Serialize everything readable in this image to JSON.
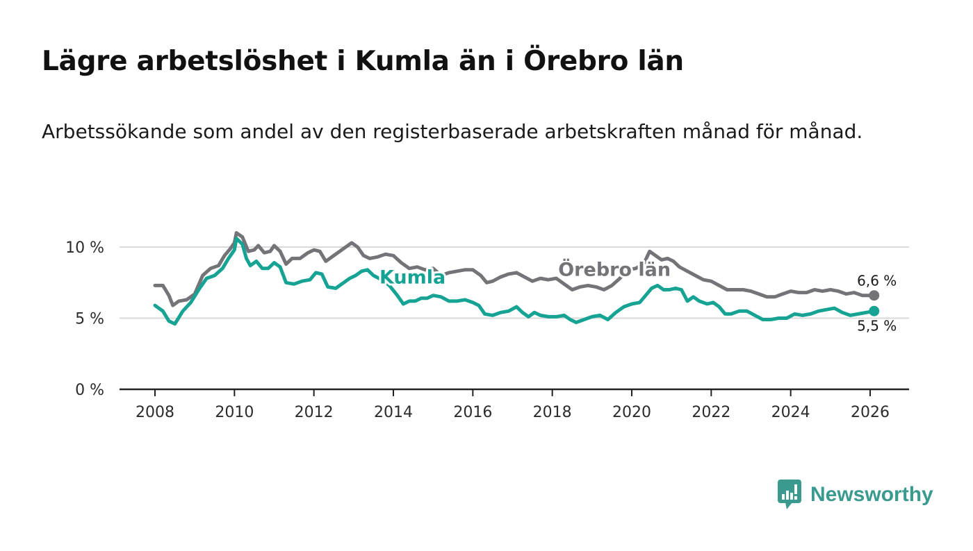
{
  "title": "Lägre arbetslöshet i Kumla än i Örebro län",
  "subtitle": "Arbetssökande som andel av den registerbaserade arbetskraften månad för månad.",
  "brand": {
    "name": "Newsworthy"
  },
  "colors": {
    "kumla": "#16a393",
    "orebro": "#737378",
    "grid": "#d9d9d9",
    "axis": "#222222",
    "brand": "#3a9a8f"
  },
  "chart_data": {
    "type": "line",
    "title": "Lägre arbetslöshet i Kumla än i Örebro län",
    "xlabel": "",
    "ylabel": "",
    "xlim": [
      2007.8,
      2026.9
    ],
    "ylim": [
      0,
      10
    ],
    "x_ticks": [
      2008,
      2010,
      2012,
      2014,
      2016,
      2018,
      2020,
      2022,
      2024,
      2026
    ],
    "x_tick_labels": [
      "2008",
      "2010",
      "2012",
      "2014",
      "2016",
      "2018",
      "2020",
      "2022",
      "2024",
      "2026"
    ],
    "y_ticks": [
      0,
      5,
      10
    ],
    "y_tick_labels": [
      "0 %",
      "5 %",
      "10 %"
    ],
    "grid": true,
    "series": [
      {
        "name": "Örebro län",
        "key": "orebro",
        "label": "Örebro län",
        "label_at": [
          2018.15,
          7.98
        ],
        "end_label": "6,6 %",
        "points": [
          [
            2008.0,
            7.3
          ],
          [
            2008.2,
            7.3
          ],
          [
            2008.35,
            6.6
          ],
          [
            2008.45,
            5.9
          ],
          [
            2008.6,
            6.2
          ],
          [
            2008.8,
            6.3
          ],
          [
            2009.0,
            6.7
          ],
          [
            2009.2,
            8.0
          ],
          [
            2009.4,
            8.5
          ],
          [
            2009.6,
            8.7
          ],
          [
            2009.75,
            9.4
          ],
          [
            2009.9,
            9.9
          ],
          [
            2010.0,
            10.3
          ],
          [
            2010.05,
            11.0
          ],
          [
            2010.2,
            10.7
          ],
          [
            2010.35,
            9.7
          ],
          [
            2010.5,
            9.8
          ],
          [
            2010.6,
            10.1
          ],
          [
            2010.75,
            9.6
          ],
          [
            2010.9,
            9.7
          ],
          [
            2011.0,
            10.1
          ],
          [
            2011.15,
            9.7
          ],
          [
            2011.3,
            8.8
          ],
          [
            2011.45,
            9.2
          ],
          [
            2011.65,
            9.2
          ],
          [
            2011.85,
            9.6
          ],
          [
            2012.0,
            9.8
          ],
          [
            2012.15,
            9.7
          ],
          [
            2012.3,
            9.0
          ],
          [
            2012.45,
            9.3
          ],
          [
            2012.6,
            9.6
          ],
          [
            2012.8,
            10.0
          ],
          [
            2012.95,
            10.3
          ],
          [
            2013.1,
            10.0
          ],
          [
            2013.25,
            9.4
          ],
          [
            2013.4,
            9.2
          ],
          [
            2013.6,
            9.3
          ],
          [
            2013.8,
            9.5
          ],
          [
            2014.0,
            9.4
          ],
          [
            2014.2,
            8.9
          ],
          [
            2014.4,
            8.5
          ],
          [
            2014.6,
            8.6
          ],
          [
            2014.8,
            8.4
          ],
          [
            2015.0,
            8.5
          ],
          [
            2015.2,
            8.0
          ],
          [
            2015.4,
            8.2
          ],
          [
            2015.6,
            8.3
          ],
          [
            2015.8,
            8.4
          ],
          [
            2016.0,
            8.4
          ],
          [
            2016.2,
            8.0
          ],
          [
            2016.35,
            7.5
          ],
          [
            2016.5,
            7.6
          ],
          [
            2016.7,
            7.9
          ],
          [
            2016.9,
            8.1
          ],
          [
            2017.1,
            8.2
          ],
          [
            2017.3,
            7.9
          ],
          [
            2017.5,
            7.6
          ],
          [
            2017.7,
            7.8
          ],
          [
            2017.9,
            7.7
          ],
          [
            2018.1,
            7.8
          ],
          [
            2018.3,
            7.4
          ],
          [
            2018.5,
            7.0
          ],
          [
            2018.7,
            7.2
          ],
          [
            2018.9,
            7.3
          ],
          [
            2019.1,
            7.2
          ],
          [
            2019.3,
            7.0
          ],
          [
            2019.5,
            7.3
          ],
          [
            2019.7,
            7.8
          ],
          [
            2019.9,
            8.4
          ],
          [
            2020.1,
            8.5
          ],
          [
            2020.3,
            8.8
          ],
          [
            2020.45,
            9.7
          ],
          [
            2020.6,
            9.4
          ],
          [
            2020.75,
            9.1
          ],
          [
            2020.9,
            9.2
          ],
          [
            2021.05,
            9.0
          ],
          [
            2021.2,
            8.6
          ],
          [
            2021.4,
            8.3
          ],
          [
            2021.6,
            8.0
          ],
          [
            2021.8,
            7.7
          ],
          [
            2022.0,
            7.6
          ],
          [
            2022.2,
            7.3
          ],
          [
            2022.4,
            7.0
          ],
          [
            2022.6,
            7.0
          ],
          [
            2022.8,
            7.0
          ],
          [
            2023.0,
            6.9
          ],
          [
            2023.2,
            6.7
          ],
          [
            2023.4,
            6.5
          ],
          [
            2023.6,
            6.5
          ],
          [
            2023.8,
            6.7
          ],
          [
            2024.0,
            6.9
          ],
          [
            2024.2,
            6.8
          ],
          [
            2024.4,
            6.8
          ],
          [
            2024.6,
            7.0
          ],
          [
            2024.8,
            6.9
          ],
          [
            2025.0,
            7.0
          ],
          [
            2025.2,
            6.9
          ],
          [
            2025.4,
            6.7
          ],
          [
            2025.6,
            6.8
          ],
          [
            2025.8,
            6.6
          ],
          [
            2026.0,
            6.6
          ],
          [
            2026.1,
            6.6
          ]
        ]
      },
      {
        "name": "Kumla",
        "key": "kumla",
        "label": "Kumla",
        "label_at": [
          2013.65,
          7.43
        ],
        "end_label": "5,5 %",
        "points": [
          [
            2008.0,
            5.9
          ],
          [
            2008.2,
            5.5
          ],
          [
            2008.35,
            4.8
          ],
          [
            2008.5,
            4.6
          ],
          [
            2008.7,
            5.5
          ],
          [
            2008.9,
            6.1
          ],
          [
            2009.1,
            7.0
          ],
          [
            2009.3,
            7.8
          ],
          [
            2009.5,
            8.0
          ],
          [
            2009.7,
            8.5
          ],
          [
            2009.85,
            9.2
          ],
          [
            2010.0,
            9.8
          ],
          [
            2010.05,
            10.6
          ],
          [
            2010.2,
            10.2
          ],
          [
            2010.3,
            9.2
          ],
          [
            2010.4,
            8.7
          ],
          [
            2010.55,
            9.0
          ],
          [
            2010.7,
            8.5
          ],
          [
            2010.85,
            8.5
          ],
          [
            2011.0,
            8.9
          ],
          [
            2011.15,
            8.6
          ],
          [
            2011.3,
            7.5
          ],
          [
            2011.5,
            7.4
          ],
          [
            2011.7,
            7.6
          ],
          [
            2011.9,
            7.7
          ],
          [
            2012.05,
            8.2
          ],
          [
            2012.2,
            8.1
          ],
          [
            2012.35,
            7.2
          ],
          [
            2012.55,
            7.1
          ],
          [
            2012.7,
            7.4
          ],
          [
            2012.9,
            7.8
          ],
          [
            2013.05,
            8.0
          ],
          [
            2013.2,
            8.3
          ],
          [
            2013.35,
            8.4
          ],
          [
            2013.5,
            8.0
          ],
          [
            2013.7,
            7.7
          ],
          [
            2013.9,
            7.3
          ],
          [
            2014.1,
            6.6
          ],
          [
            2014.25,
            6.0
          ],
          [
            2014.4,
            6.2
          ],
          [
            2014.55,
            6.2
          ],
          [
            2014.7,
            6.4
          ],
          [
            2014.85,
            6.4
          ],
          [
            2015.0,
            6.6
          ],
          [
            2015.2,
            6.5
          ],
          [
            2015.4,
            6.2
          ],
          [
            2015.6,
            6.2
          ],
          [
            2015.8,
            6.3
          ],
          [
            2016.0,
            6.1
          ],
          [
            2016.15,
            5.9
          ],
          [
            2016.3,
            5.3
          ],
          [
            2016.5,
            5.2
          ],
          [
            2016.7,
            5.4
          ],
          [
            2016.9,
            5.5
          ],
          [
            2017.1,
            5.8
          ],
          [
            2017.25,
            5.4
          ],
          [
            2017.4,
            5.1
          ],
          [
            2017.55,
            5.4
          ],
          [
            2017.7,
            5.2
          ],
          [
            2017.9,
            5.1
          ],
          [
            2018.1,
            5.1
          ],
          [
            2018.3,
            5.2
          ],
          [
            2018.45,
            4.9
          ],
          [
            2018.6,
            4.7
          ],
          [
            2018.8,
            4.9
          ],
          [
            2019.0,
            5.1
          ],
          [
            2019.2,
            5.2
          ],
          [
            2019.4,
            4.9
          ],
          [
            2019.6,
            5.4
          ],
          [
            2019.8,
            5.8
          ],
          [
            2020.0,
            6.0
          ],
          [
            2020.2,
            6.1
          ],
          [
            2020.35,
            6.6
          ],
          [
            2020.5,
            7.1
          ],
          [
            2020.65,
            7.3
          ],
          [
            2020.8,
            7.0
          ],
          [
            2020.95,
            7.0
          ],
          [
            2021.1,
            7.1
          ],
          [
            2021.25,
            7.0
          ],
          [
            2021.4,
            6.2
          ],
          [
            2021.55,
            6.5
          ],
          [
            2021.7,
            6.2
          ],
          [
            2021.9,
            6.0
          ],
          [
            2022.05,
            6.1
          ],
          [
            2022.2,
            5.8
          ],
          [
            2022.35,
            5.3
          ],
          [
            2022.5,
            5.3
          ],
          [
            2022.7,
            5.5
          ],
          [
            2022.9,
            5.5
          ],
          [
            2023.1,
            5.2
          ],
          [
            2023.3,
            4.9
          ],
          [
            2023.5,
            4.9
          ],
          [
            2023.7,
            5.0
          ],
          [
            2023.9,
            5.0
          ],
          [
            2024.1,
            5.3
          ],
          [
            2024.3,
            5.2
          ],
          [
            2024.5,
            5.3
          ],
          [
            2024.7,
            5.5
          ],
          [
            2024.9,
            5.6
          ],
          [
            2025.1,
            5.7
          ],
          [
            2025.3,
            5.4
          ],
          [
            2025.5,
            5.2
          ],
          [
            2025.7,
            5.3
          ],
          [
            2025.9,
            5.4
          ],
          [
            2026.1,
            5.5
          ]
        ]
      }
    ]
  }
}
